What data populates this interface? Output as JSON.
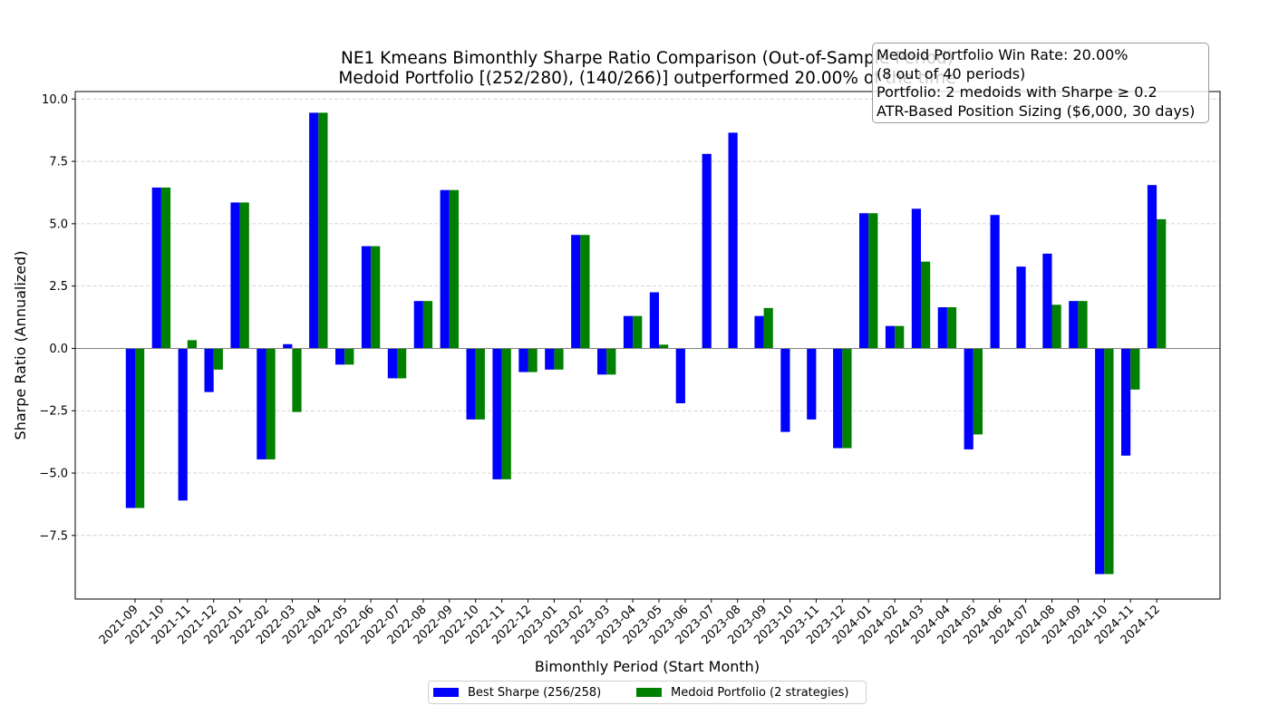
{
  "chart_data": {
    "type": "bar",
    "title_line1": "NE1 Kmeans Bimonthly Sharpe Ratio Comparison (Out-of-Sample Period)",
    "title_line2": "Medoid Portfolio [(252/280), (140/266)] outperformed 20.00% of the time",
    "xlabel": "Bimonthly Period (Start Month)",
    "ylabel": "Sharpe Ratio (Annualized)",
    "ylim": [
      -10.05,
      10.3
    ],
    "yticks": [
      10.0,
      7.5,
      5.0,
      2.5,
      0.0,
      -2.5,
      -5.0,
      -7.5
    ],
    "ytick_labels": [
      "10.0",
      "7.5",
      "5.0",
      "2.5",
      "0.0",
      "−2.5",
      "−5.0",
      "−7.5"
    ],
    "grid": "y-dashed",
    "legend_position": "bottom-center",
    "categories": [
      "2021-09",
      "2021-10",
      "2021-11",
      "2021-12",
      "2022-01",
      "2022-02",
      "2022-03",
      "2022-04",
      "2022-05",
      "2022-06",
      "2022-07",
      "2022-08",
      "2022-09",
      "2022-10",
      "2022-11",
      "2022-12",
      "2023-01",
      "2023-02",
      "2023-03",
      "2023-04",
      "2023-05",
      "2023-06",
      "2023-07",
      "2023-08",
      "2023-09",
      "2023-10",
      "2023-11",
      "2023-12",
      "2024-01",
      "2024-02",
      "2024-03",
      "2024-04",
      "2024-05",
      "2024-06",
      "2024-07",
      "2024-08",
      "2024-09",
      "2024-10",
      "2024-11",
      "2024-12"
    ],
    "series": [
      {
        "name": "Best Sharpe (256/258)",
        "color": "#0000ff",
        "values": [
          -6.4,
          6.45,
          -6.1,
          -1.75,
          5.85,
          -4.45,
          0.17,
          9.45,
          -0.65,
          4.1,
          -1.2,
          1.9,
          6.35,
          -2.85,
          -5.25,
          -0.95,
          -0.85,
          4.55,
          -1.05,
          1.3,
          2.25,
          -2.2,
          7.8,
          8.65,
          1.3,
          -3.35,
          -2.85,
          -4.0,
          5.42,
          0.9,
          5.6,
          1.65,
          -4.05,
          5.35,
          3.28,
          3.8,
          1.9,
          -9.05,
          -4.3,
          6.55
        ]
      },
      {
        "name": "Medoid Portfolio (2 strategies)",
        "color": "#008000",
        "values": [
          -6.4,
          6.45,
          0.33,
          -0.85,
          5.85,
          -4.45,
          -2.55,
          9.45,
          -0.65,
          4.1,
          -1.2,
          1.9,
          6.35,
          -2.85,
          -5.25,
          -0.95,
          -0.85,
          4.55,
          -1.05,
          1.3,
          0.15,
          0.0,
          0.0,
          0.0,
          1.62,
          0.0,
          0.0,
          -4.0,
          5.42,
          0.9,
          3.48,
          1.65,
          -3.45,
          0.0,
          0.0,
          1.75,
          1.9,
          -9.05,
          -1.65,
          5.18
        ]
      }
    ]
  },
  "info_box": {
    "line1": "Medoid Portfolio Win Rate: 20.00%",
    "line2": "(8 out of 40 periods)",
    "line3": "Portfolio: 2 medoids with Sharpe ≥ 0.2",
    "line4": "ATR-Based Position Sizing ($6,000, 30 days)"
  },
  "legend": {
    "best_label": "Best Sharpe (256/258)",
    "medoid_label": "Medoid Portfolio (2 strategies)",
    "best_color": "#0000ff",
    "medoid_color": "#008000"
  }
}
